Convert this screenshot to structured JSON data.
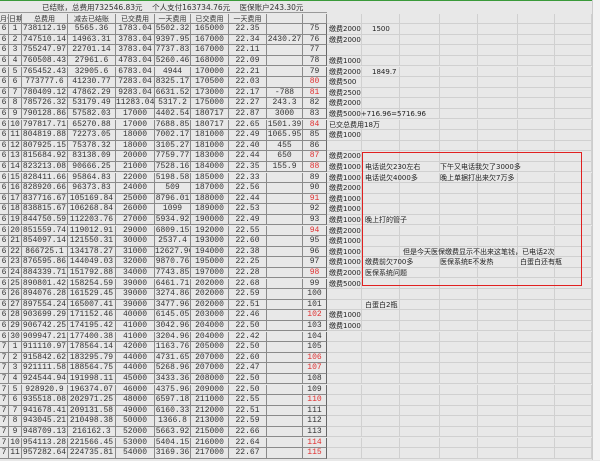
{
  "summary_title": "已结账，总费用732546.83元    个人支付163734.76元    医保账户243.30元",
  "headers": [
    "月份",
    "日期",
    "总费用",
    "减去已结账",
    "已交费用",
    "一天费用",
    "已交费用",
    "一天费用",
    "",
    ""
  ],
  "accent_colors": {
    "red_number": "#e03030",
    "highlight_box": "#e02020",
    "sheet_top_border": "#3a9a3a"
  },
  "red_numbers": [
    80,
    81,
    84,
    87,
    88,
    91,
    94,
    98,
    102,
    106,
    107,
    110,
    114,
    115
  ],
  "rows": [
    [
      "6",
      "1",
      "738112.19",
      "5565.36",
      "1783.04",
      "5502.32",
      "165000",
      "22.35",
      "",
      "75"
    ],
    [
      "6",
      "2",
      "747510.14",
      "14963.31",
      "3783.04",
      "9397.95",
      "167000",
      "22.34",
      "2430.27",
      "76"
    ],
    [
      "6",
      "3",
      "755247.97",
      "22701.14",
      "3783.04",
      "7737.83",
      "167000",
      "22.11",
      "",
      "77"
    ],
    [
      "6",
      "4",
      "760508.43",
      "27961.6",
      "4783.04",
      "5260.46",
      "168000",
      "22.09",
      "",
      "78"
    ],
    [
      "6",
      "5",
      "765452.43",
      "32905.6",
      "6783.04",
      "4944",
      "170000",
      "22.21",
      "",
      "79"
    ],
    [
      "6",
      "6",
      "773777.6",
      "41230.77",
      "7283.04",
      "8325.17",
      "170500",
      "22.03",
      "",
      "80"
    ],
    [
      "6",
      "7",
      "780409.12",
      "47862.29",
      "9283.04",
      "6631.52",
      "173000",
      "22.17",
      "-788",
      "81"
    ],
    [
      "6",
      "8",
      "785726.32",
      "53179.49",
      "11283.04",
      "5317.2",
      "175000",
      "22.27",
      "243.3",
      "82"
    ],
    [
      "6",
      "9",
      "790128.86",
      "57582.03",
      "17000",
      "4402.54",
      "180717",
      "22.87",
      "3000",
      "83"
    ],
    [
      "6",
      "10",
      "797817.71",
      "65270.88",
      "17000",
      "7688.85",
      "180717",
      "22.65",
      "1501.39",
      "84"
    ],
    [
      "6",
      "11",
      "804819.88",
      "72273.05",
      "18000",
      "7002.17",
      "181000",
      "22.49",
      "1065.95",
      "85"
    ],
    [
      "6",
      "12",
      "807925.15",
      "75378.32",
      "18000",
      "3105.27",
      "181000",
      "22.40",
      "455",
      "86"
    ],
    [
      "6",
      "13",
      "815684.92",
      "83138.09",
      "20000",
      "7759.77",
      "183000",
      "22.44",
      "650",
      "87"
    ],
    [
      "6",
      "14",
      "823213.08",
      "90666.25",
      "21000",
      "7528.16",
      "184000",
      "22.35",
      "155.9",
      "88"
    ],
    [
      "6",
      "15",
      "828411.66",
      "95864.83",
      "22000",
      "5198.58",
      "185000",
      "22.33",
      "",
      "89"
    ],
    [
      "6",
      "16",
      "828920.66",
      "96373.83",
      "24000",
      "509",
      "187000",
      "22.56",
      "",
      "90"
    ],
    [
      "6",
      "17",
      "837716.67",
      "105169.84",
      "25000",
      "8796.01",
      "188000",
      "22.44",
      "",
      "91"
    ],
    [
      "6",
      "18",
      "838815.67",
      "106268.84",
      "26000",
      "1099",
      "189000",
      "22.53",
      "",
      "92"
    ],
    [
      "6",
      "19",
      "844750.59",
      "112203.76",
      "27000",
      "5934.92",
      "190000",
      "22.49",
      "",
      "93"
    ],
    [
      "6",
      "20",
      "851559.74",
      "119012.91",
      "29000",
      "6809.15",
      "192000",
      "22.55",
      "",
      "94"
    ],
    [
      "6",
      "21",
      "854097.14",
      "121550.31",
      "30000",
      "2537.4",
      "193000",
      "22.60",
      "",
      "95"
    ],
    [
      "6",
      "22",
      "866725.1",
      "134178.27",
      "31000",
      "12627.96",
      "194000",
      "22.38",
      "",
      "96"
    ],
    [
      "6",
      "23",
      "876595.86",
      "144049.03",
      "32000",
      "9870.76",
      "195000",
      "22.25",
      "",
      "97"
    ],
    [
      "6",
      "24",
      "884339.71",
      "151792.88",
      "34000",
      "7743.85",
      "197000",
      "22.28",
      "",
      "98"
    ],
    [
      "6",
      "25",
      "890801.42",
      "158254.59",
      "39000",
      "6461.71",
      "202000",
      "22.68",
      "",
      "99"
    ],
    [
      "6",
      "26",
      "894076.28",
      "161529.45",
      "39000",
      "3274.86",
      "202000",
      "22.59",
      "",
      "100"
    ],
    [
      "6",
      "27",
      "897554.24",
      "165007.41",
      "39000",
      "3477.96",
      "202000",
      "22.51",
      "",
      "101"
    ],
    [
      "6",
      "28",
      "903699.29",
      "171152.46",
      "40000",
      "6145.05",
      "203000",
      "22.46",
      "",
      "102"
    ],
    [
      "6",
      "29",
      "906742.25",
      "174195.42",
      "41000",
      "3042.96",
      "204000",
      "22.50",
      "",
      "103"
    ],
    [
      "6",
      "30",
      "909947.21",
      "177400.38",
      "41000",
      "3204.96",
      "204000",
      "22.42",
      "",
      "104"
    ],
    [
      "7",
      "1",
      "911110.97",
      "178564.14",
      "42000",
      "1163.76",
      "205000",
      "22.50",
      "",
      "105"
    ],
    [
      "7",
      "2",
      "915842.62",
      "183295.79",
      "44000",
      "4731.65",
      "207000",
      "22.60",
      "",
      "106"
    ],
    [
      "7",
      "3",
      "921111.58",
      "188564.75",
      "44000",
      "5268.96",
      "207000",
      "22.47",
      "",
      "107"
    ],
    [
      "7",
      "4",
      "924544.94",
      "191998.11",
      "45000",
      "3433.36",
      "208000",
      "22.50",
      "",
      "108"
    ],
    [
      "7",
      "5",
      "928920.9",
      "196374.07",
      "46000",
      "4375.96",
      "209000",
      "22.50",
      "",
      "109"
    ],
    [
      "7",
      "6",
      "935518.08",
      "202971.25",
      "48000",
      "6597.18",
      "211000",
      "22.55",
      "",
      "110"
    ],
    [
      "7",
      "7",
      "941678.41",
      "209131.58",
      "49000",
      "6160.33",
      "212000",
      "22.51",
      "",
      "111"
    ],
    [
      "7",
      "8",
      "943045.21",
      "210498.38",
      "50000",
      "1366.8",
      "213000",
      "22.59",
      "",
      "112"
    ],
    [
      "7",
      "9",
      "948709.13",
      "216162.3",
      "52000",
      "5663.92",
      "215000",
      "22.66",
      "",
      "113"
    ],
    [
      "7",
      "10",
      "954113.28",
      "221566.45",
      "53000",
      "5404.15",
      "216000",
      "22.64",
      "",
      "114"
    ],
    [
      "7",
      "11",
      "957282.64",
      "224735.81",
      "54000",
      "3169.36",
      "217000",
      "22.67",
      "",
      "115"
    ]
  ],
  "notes": [
    [
      "缴费2000",
      "1500",
      "",
      ""
    ],
    [
      "缴费2000",
      "",
      "",
      ""
    ],
    [
      "",
      "",
      "",
      ""
    ],
    [
      "缴费1000",
      "",
      "",
      ""
    ],
    [
      "缴费2000",
      "1849.7",
      "",
      ""
    ],
    [
      "缴费500",
      "",
      "",
      ""
    ],
    [
      "缴费2500",
      "",
      "",
      ""
    ],
    [
      "缴费2000",
      "",
      "",
      ""
    ],
    [
      "缴费5000+716.96=5716.96",
      "",
      "",
      ""
    ],
    [
      "已交总费用18万",
      "",
      "",
      ""
    ],
    [
      "缴费1000",
      "",
      "",
      ""
    ],
    [
      "",
      "",
      "",
      ""
    ],
    [
      "缴费2000",
      "",
      "",
      ""
    ],
    [
      "缴费1000",
      "电话说欠230左右",
      "下午又电话我欠了3000多",
      ""
    ],
    [
      "缴费1000",
      "电话说欠4000多",
      "晚上单据打出来欠7万多",
      ""
    ],
    [
      "缴费2000",
      "",
      "",
      ""
    ],
    [
      "缴费1000",
      "",
      "",
      ""
    ],
    [
      "缴费1000",
      "",
      "",
      ""
    ],
    [
      "缴费1000",
      "晚上打的管子",
      "",
      ""
    ],
    [
      "缴费2000",
      "",
      "",
      ""
    ],
    [
      "缴费1000",
      "",
      "",
      ""
    ],
    [
      "缴费1000",
      "",
      "但是今天医保缴费显示不出来这笔钱，已电话2次",
      ""
    ],
    [
      "缴费1000",
      "缴费前欠700多",
      "医保系统E不发热",
      "白蛋白还有瓶"
    ],
    [
      "缴费2000",
      "医保系统问题",
      "",
      ""
    ],
    [
      "缴费5000",
      "",
      "",
      ""
    ],
    [
      "",
      "",
      "",
      ""
    ],
    [
      "",
      "白蛋白2瓶",
      "",
      ""
    ],
    [
      "缴费1000",
      "",
      "",
      ""
    ],
    [
      "缴费1000",
      "",
      "",
      ""
    ]
  ]
}
